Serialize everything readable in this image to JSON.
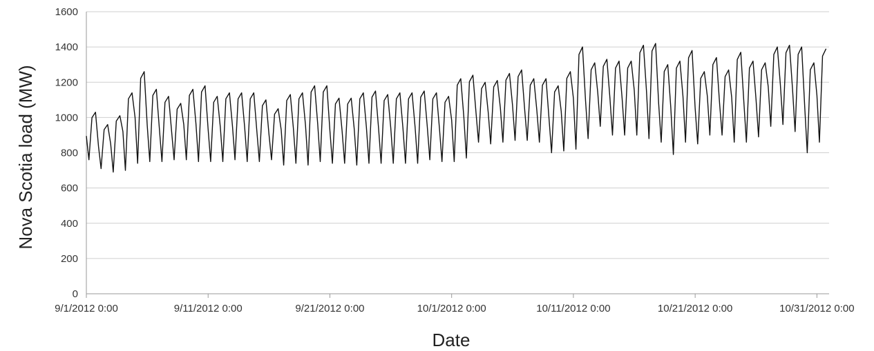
{
  "chart_data": {
    "type": "line",
    "title": "",
    "xlabel": "Date",
    "ylabel": "Nova Scotia load (MW)",
    "ylim": [
      0,
      1600
    ],
    "yticks": [
      0,
      200,
      400,
      600,
      800,
      1000,
      1200,
      1400,
      1600
    ],
    "xlim": [
      "2012-09-01T00:00",
      "2012-11-01T00:00"
    ],
    "xticks": [
      {
        "value": "2012-09-01T00:00",
        "label": "9/1/2012 0:00"
      },
      {
        "value": "2012-09-11T00:00",
        "label": "9/11/2012 0:00"
      },
      {
        "value": "2012-09-21T00:00",
        "label": "9/21/2012 0:00"
      },
      {
        "value": "2012-10-01T00:00",
        "label": "10/1/2012 0:00"
      },
      {
        "value": "2012-10-11T00:00",
        "label": "10/11/2012 0:00"
      },
      {
        "value": "2012-10-21T00:00",
        "label": "10/21/2012 0:00"
      },
      {
        "value": "2012-10-31T00:00",
        "label": "10/31/2012 0:00"
      }
    ],
    "grid": true,
    "series": [
      {
        "color": "#111111",
        "sampling": "daily minimum and maximum",
        "x": [
          "2012-09-01",
          "2012-09-02",
          "2012-09-03",
          "2012-09-04",
          "2012-09-05",
          "2012-09-06",
          "2012-09-07",
          "2012-09-08",
          "2012-09-09",
          "2012-09-10",
          "2012-09-11",
          "2012-09-12",
          "2012-09-13",
          "2012-09-14",
          "2012-09-15",
          "2012-09-16",
          "2012-09-17",
          "2012-09-18",
          "2012-09-19",
          "2012-09-20",
          "2012-09-21",
          "2012-09-22",
          "2012-09-23",
          "2012-09-24",
          "2012-09-25",
          "2012-09-26",
          "2012-09-27",
          "2012-09-28",
          "2012-09-29",
          "2012-09-30",
          "2012-10-01",
          "2012-10-02",
          "2012-10-03",
          "2012-10-04",
          "2012-10-05",
          "2012-10-06",
          "2012-10-07",
          "2012-10-08",
          "2012-10-09",
          "2012-10-10",
          "2012-10-11",
          "2012-10-12",
          "2012-10-13",
          "2012-10-14",
          "2012-10-15",
          "2012-10-16",
          "2012-10-17",
          "2012-10-18",
          "2012-10-19",
          "2012-10-20",
          "2012-10-21",
          "2012-10-22",
          "2012-10-23",
          "2012-10-24",
          "2012-10-25",
          "2012-10-26",
          "2012-10-27",
          "2012-10-28",
          "2012-10-29",
          "2012-10-30",
          "2012-10-31"
        ],
        "min": [
          760,
          710,
          690,
          700,
          740,
          750,
          750,
          760,
          760,
          750,
          750,
          750,
          760,
          750,
          750,
          760,
          730,
          740,
          730,
          750,
          740,
          740,
          730,
          740,
          740,
          740,
          740,
          740,
          760,
          750,
          750,
          770,
          860,
          850,
          860,
          870,
          870,
          860,
          800,
          810,
          820,
          880,
          950,
          900,
          900,
          900,
          880,
          860,
          790,
          860,
          850,
          900,
          900,
          860,
          860,
          890,
          950,
          960,
          920,
          800,
          860
        ],
        "max": [
          1030,
          960,
          1010,
          1140,
          1260,
          1160,
          1120,
          1080,
          1160,
          1180,
          1120,
          1140,
          1140,
          1140,
          1100,
          1050,
          1130,
          1140,
          1180,
          1180,
          1110,
          1110,
          1140,
          1150,
          1130,
          1140,
          1140,
          1150,
          1140,
          1120,
          1220,
          1240,
          1200,
          1210,
          1250,
          1270,
          1220,
          1220,
          1180,
          1260,
          1400,
          1310,
          1330,
          1320,
          1320,
          1410,
          1420,
          1300,
          1320,
          1380,
          1260,
          1340,
          1270,
          1370,
          1320,
          1310,
          1400,
          1410,
          1400,
          1310,
          1390
        ]
      }
    ]
  }
}
